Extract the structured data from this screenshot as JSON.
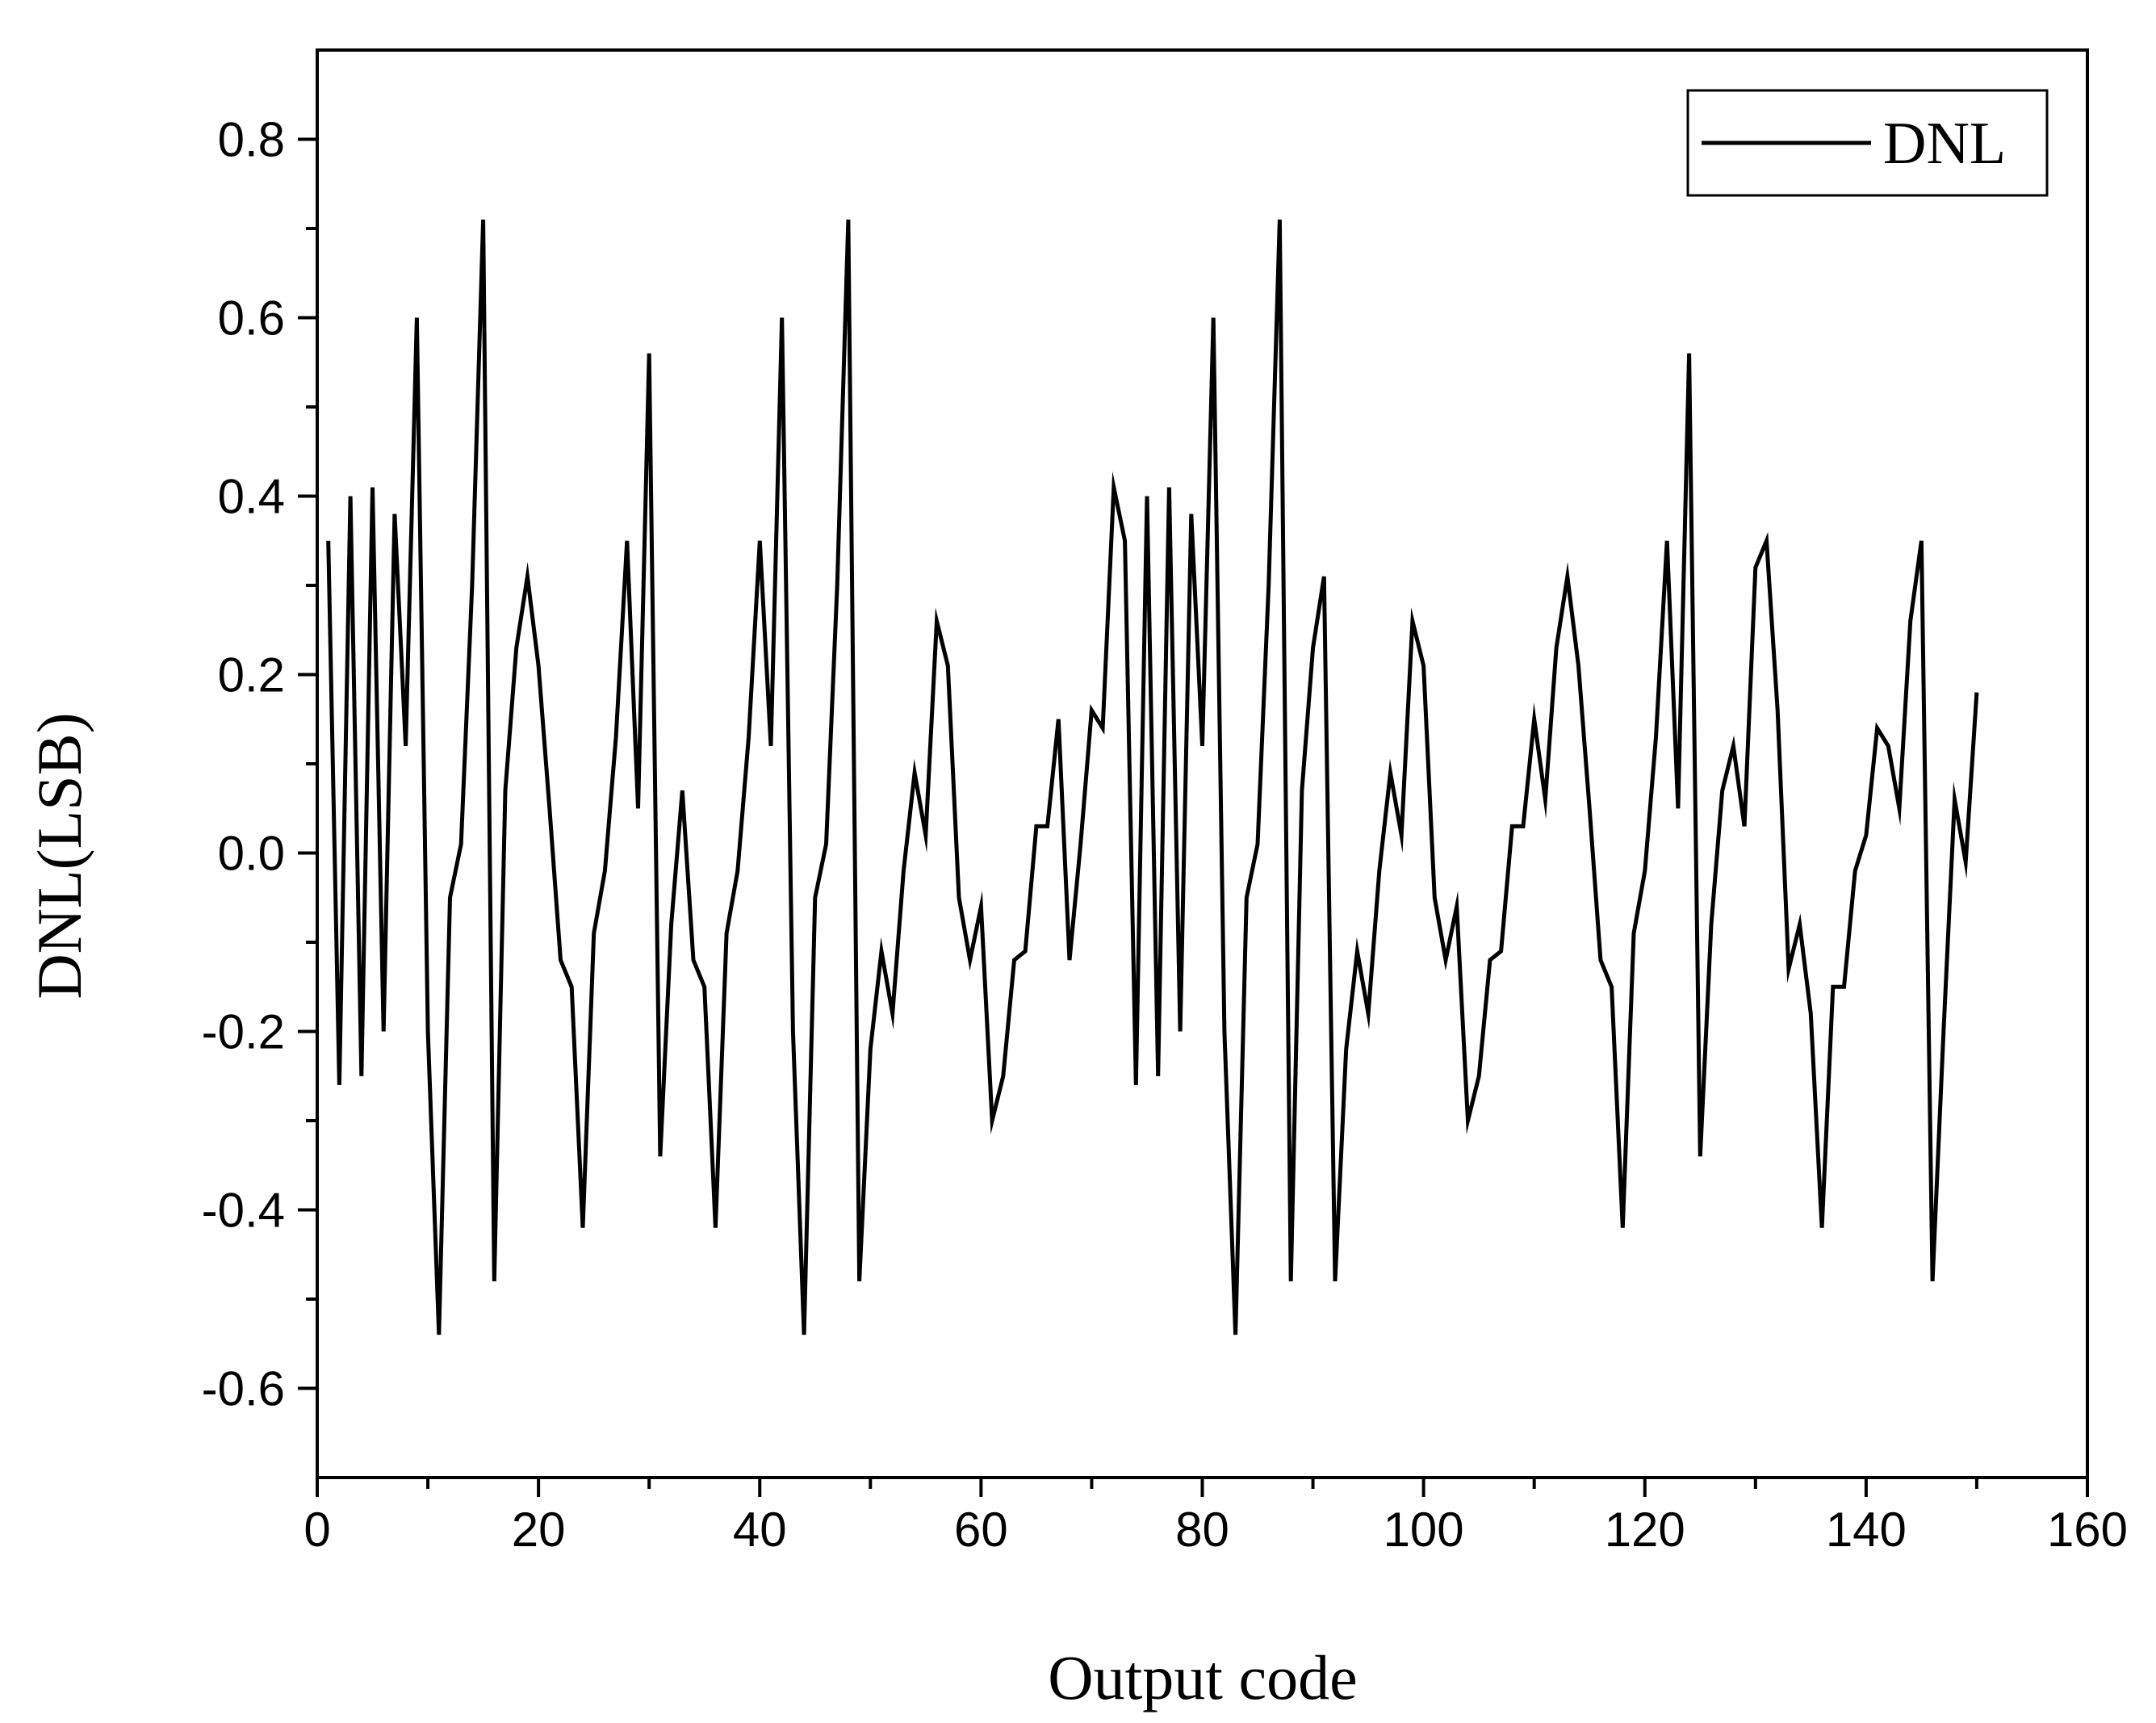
{
  "chart_data": {
    "type": "line",
    "xlabel": "Output code",
    "ylabel": "DNL(LSB)",
    "xlim": [
      0,
      160
    ],
    "ylim": [
      -0.7,
      0.9
    ],
    "xticks": [
      0,
      20,
      40,
      60,
      80,
      100,
      120,
      140,
      160
    ],
    "xtick_labels": [
      "0",
      "20",
      "40",
      "60",
      "80",
      "100",
      "120",
      "140",
      "160"
    ],
    "yticks": [
      -0.6,
      -0.4,
      -0.2,
      0.0,
      0.2,
      0.4,
      0.6,
      0.8
    ],
    "ytick_labels": [
      "-0.6",
      "-0.4",
      "-0.2",
      "0.0",
      "0.2",
      "0.4",
      "0.6",
      "0.8"
    ],
    "grid": false,
    "legend_position": "top-right",
    "series": [
      {
        "name": "DNL",
        "color": "#000000",
        "x": [
          1,
          2,
          3,
          4,
          5,
          6,
          7,
          8,
          9,
          10,
          11,
          12,
          13,
          14,
          15,
          16,
          17,
          18,
          19,
          20,
          21,
          22,
          23,
          24,
          25,
          26,
          27,
          28,
          29,
          30,
          31,
          32,
          33,
          34,
          35,
          36,
          37,
          38,
          39,
          40,
          41,
          42,
          43,
          44,
          45,
          46,
          47,
          48,
          49,
          50,
          51,
          52,
          53,
          54,
          55,
          56,
          57,
          58,
          59,
          60,
          61,
          62,
          63,
          64,
          65,
          66,
          67,
          68,
          69,
          70,
          71,
          72,
          73,
          74,
          75,
          76,
          77,
          78,
          79,
          80,
          81,
          82,
          83,
          84,
          85,
          86,
          87,
          88,
          89,
          90,
          91,
          92,
          93,
          94,
          95,
          96,
          97,
          98,
          99,
          100,
          101,
          102,
          103,
          104,
          105,
          106,
          107,
          108,
          109,
          110,
          111,
          112,
          113,
          114,
          115,
          116,
          117,
          118,
          119,
          120,
          121,
          122,
          123,
          124,
          125,
          126,
          127,
          128,
          129,
          130,
          131,
          132,
          133,
          134,
          135,
          136,
          137,
          138,
          139,
          140,
          141,
          142,
          143,
          144,
          145,
          146,
          147,
          148,
          149,
          150
        ],
        "values": [
          0.35,
          -0.26,
          0.4,
          -0.25,
          0.41,
          -0.2,
          0.38,
          0.12,
          0.6,
          -0.2,
          -0.54,
          -0.05,
          0.01,
          0.3,
          0.71,
          -0.48,
          0.07,
          0.23,
          0.31,
          0.21,
          0.05,
          -0.12,
          -0.15,
          -0.42,
          -0.09,
          -0.02,
          0.13,
          0.35,
          0.05,
          0.56,
          -0.34,
          -0.08,
          0.07,
          -0.12,
          -0.15,
          -0.42,
          -0.09,
          -0.02,
          0.13,
          0.35,
          0.12,
          0.6,
          -0.2,
          -0.54,
          -0.05,
          0.01,
          0.3,
          0.71,
          -0.48,
          -0.22,
          -0.11,
          -0.18,
          -0.02,
          0.09,
          0.02,
          0.26,
          0.21,
          -0.05,
          -0.12,
          -0.06,
          -0.3,
          -0.25,
          -0.12,
          -0.11,
          0.03,
          0.03,
          0.15,
          -0.12,
          0.01,
          0.16,
          0.14,
          0.41,
          0.35,
          -0.26,
          0.4,
          -0.25,
          0.41,
          -0.2,
          0.38,
          0.12,
          0.6,
          -0.2,
          -0.54,
          -0.05,
          0.01,
          0.3,
          0.71,
          -0.48,
          0.07,
          0.23,
          0.31,
          -0.48,
          -0.22,
          -0.11,
          -0.18,
          -0.02,
          0.09,
          0.02,
          0.26,
          0.21,
          -0.05,
          -0.12,
          -0.06,
          -0.3,
          -0.25,
          -0.12,
          -0.11,
          0.03,
          0.03,
          0.15,
          0.06,
          0.23,
          0.31,
          0.21,
          0.05,
          -0.12,
          -0.15,
          -0.42,
          -0.09,
          -0.02,
          0.13,
          0.35,
          0.05,
          0.56,
          -0.34,
          -0.08,
          0.07,
          0.12,
          0.03,
          0.32,
          0.35,
          0.16,
          -0.13,
          -0.08,
          -0.18,
          -0.42,
          -0.15,
          -0.15,
          -0.02,
          0.02,
          0.14,
          0.12,
          0.05,
          0.26,
          0.35,
          -0.48,
          -0.2,
          0.06,
          -0.01,
          0.18
        ]
      }
    ]
  }
}
